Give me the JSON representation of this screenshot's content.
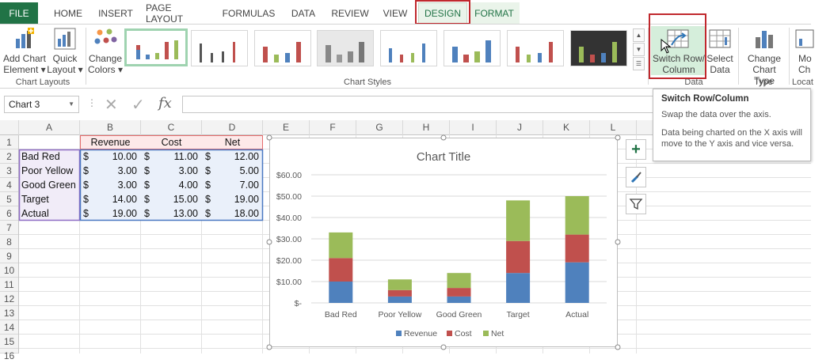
{
  "tabs": {
    "file": "FILE",
    "items": [
      "HOME",
      "INSERT",
      "PAGE LAYOUT",
      "FORMULAS",
      "DATA",
      "REVIEW",
      "VIEW",
      "DESIGN",
      "FORMAT"
    ],
    "active": "DESIGN"
  },
  "ribbon": {
    "add_chart_element": [
      "Add Chart",
      "Element ▾"
    ],
    "quick_layout": [
      "Quick",
      "Layout ▾"
    ],
    "change_colors": [
      "Change",
      "Colors ▾"
    ],
    "switch_row_column": [
      "Switch Row/",
      "Column"
    ],
    "select_data": [
      "Select",
      "Data"
    ],
    "change_chart_type": [
      "Change",
      "Chart Type"
    ],
    "move_chart": [
      "Mo",
      "Ch"
    ],
    "groups": {
      "chart_layouts": "Chart Layouts",
      "chart_styles": "Chart Styles",
      "data": "Data",
      "type": "Type",
      "location": "Locat"
    }
  },
  "formula_bar": {
    "name_box": "Chart 3",
    "fx": "fx",
    "value": ""
  },
  "grid": {
    "columns": [
      "A",
      "B",
      "C",
      "D",
      "E",
      "F",
      "G",
      "H",
      "I",
      "J",
      "K",
      "L"
    ],
    "rows": [
      "1",
      "2",
      "3",
      "4",
      "5",
      "6",
      "7",
      "8",
      "9",
      "10",
      "11",
      "12",
      "13",
      "14",
      "15",
      "16"
    ],
    "headers": [
      "Revenue",
      "Cost",
      "Net"
    ],
    "data": [
      {
        "label": "Bad Red",
        "revenue": "10.00",
        "cost": "11.00",
        "net": "12.00"
      },
      {
        "label": "Poor Yellow",
        "revenue": "3.00",
        "cost": "3.00",
        "net": "5.00"
      },
      {
        "label": "Good Green",
        "revenue": "3.00",
        "cost": "4.00",
        "net": "7.00"
      },
      {
        "label": "Target",
        "revenue": "14.00",
        "cost": "15.00",
        "net": "19.00"
      },
      {
        "label": "Actual",
        "revenue": "19.00",
        "cost": "13.00",
        "net": "18.00"
      }
    ],
    "currency": "$"
  },
  "tooltip": {
    "title": "Switch Row/Column",
    "line1": "Swap the data over the axis.",
    "line2": "Data being charted on the X axis will",
    "line3": "move to the Y axis and vice versa."
  },
  "colors": {
    "excel_green": "#217346",
    "revenue": "#4f81bd",
    "cost": "#c0504d",
    "net": "#9bbb59",
    "highlight_red": "#c0282d"
  },
  "chart_data": {
    "type": "bar",
    "stacked": true,
    "title": "Chart Title",
    "categories": [
      "Bad Red",
      "Poor Yellow",
      "Good Green",
      "Target",
      "Actual"
    ],
    "series": [
      {
        "name": "Revenue",
        "values": [
          10,
          3,
          3,
          14,
          19
        ]
      },
      {
        "name": "Cost",
        "values": [
          11,
          3,
          4,
          15,
          13
        ]
      },
      {
        "name": "Net",
        "values": [
          12,
          5,
          7,
          19,
          18
        ]
      }
    ],
    "ylim": [
      0,
      60
    ],
    "yticks": [
      "$-",
      "$10.00",
      "$20.00",
      "$30.00",
      "$40.00",
      "$50.00",
      "$60.00"
    ],
    "grid": true,
    "legend": "bottom"
  }
}
